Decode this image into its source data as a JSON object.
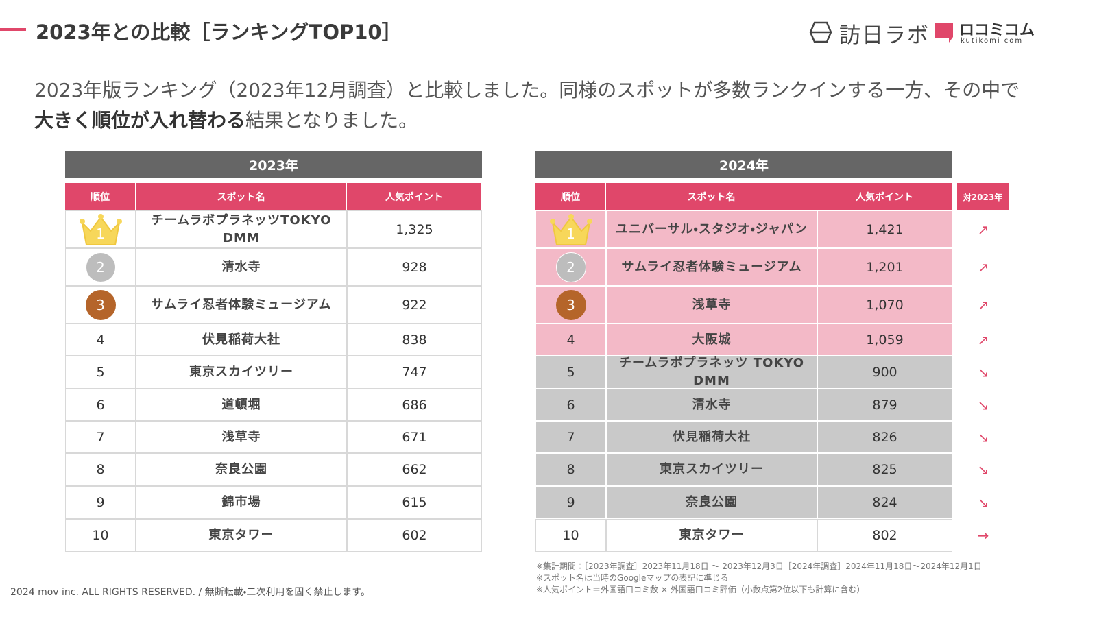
{
  "header": {
    "title": "2023年との比較［ランキングTOP10］",
    "logo_main": "訪日ラボ",
    "logo_sub": "ロコミコム",
    "logo_sub_en": "kutikomi com"
  },
  "intro": {
    "before": "2023年版ランキング（2023年12月調査）と比較しました。同様のスポットが多数ランクインする一方、その中で",
    "bold": "大きく順位が入れ替わる",
    "after": "結果となりました。"
  },
  "tables": [
    {
      "title": "2023年",
      "headers": [
        "順位",
        "スポット名",
        "人気ポイント"
      ],
      "rows": [
        [
          "1",
          "チームラボプラネッツTOKYO DMM",
          "1,325"
        ],
        [
          "2",
          "清水寺",
          "928"
        ],
        [
          "3",
          "サムライ忍者体験ミュージアム",
          "922"
        ],
        [
          "4",
          "伏見稲荷大社",
          "838"
        ],
        [
          "5",
          "東京スカイツリー",
          "747"
        ],
        [
          "6",
          "道頓堀",
          "686"
        ],
        [
          "7",
          "浅草寺",
          "671"
        ],
        [
          "8",
          "奈良公園",
          "662"
        ],
        [
          "9",
          "錦市場",
          "615"
        ],
        [
          "10",
          "東京タワー",
          "602"
        ]
      ]
    },
    {
      "title": "2024年",
      "headers": [
        "順位",
        "スポット名",
        "人気ポイント",
        "対2023年"
      ],
      "rows": [
        [
          "1",
          "ユニバーサル・スタジオ・ジャパン",
          "1,421",
          "↗"
        ],
        [
          "2",
          "サムライ忍者体験ミュージアム",
          "1,201",
          "↗"
        ],
        [
          "3",
          "浅草寺",
          "1,070",
          "↗"
        ],
        [
          "4",
          "大阪城",
          "1,059",
          "↗"
        ],
        [
          "5",
          "チームラボプラネッツ TOKYO DMM",
          "900",
          "↘"
        ],
        [
          "6",
          "清水寺",
          "879",
          "↘"
        ],
        [
          "7",
          "伏見稲荷大社",
          "826",
          "↘"
        ],
        [
          "8",
          "東京スカイツリー",
          "825",
          "↘"
        ],
        [
          "9",
          "奈良公園",
          "824",
          "↘"
        ],
        [
          "10",
          "東京タワー",
          "802",
          "→"
        ]
      ]
    }
  ],
  "notes": [
    "※集計期間：［2023年調査］2023年11月18日 〜 2023年12月3日［2024年調査］2024年11月18日〜2024年12月1日",
    "※スポット名は当時のGoogleマップの表記に準じる",
    "※人気ポイント＝外国語口コミ数 × 外国語口コミ評価（小数点第2位以下も計算に含む）"
  ],
  "footer": "2024 mov inc. ALL RIGHTS RESERVED. / 無断転載・二次利用を固く禁止します。"
}
